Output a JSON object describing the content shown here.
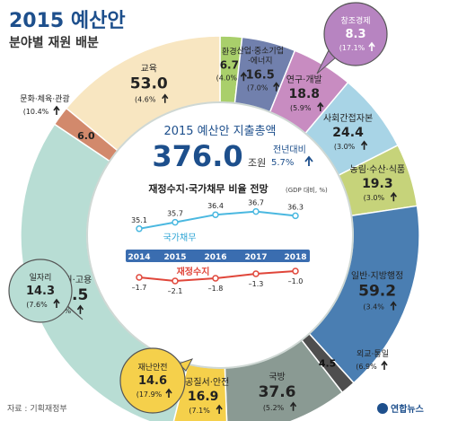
{
  "header": {
    "title": "2015 예산안",
    "subtitle": "분야별 재원 배분"
  },
  "source": "자료 : 기획재정부",
  "logo": "연합뉴스",
  "center": {
    "title": "2015 예산안 지출총액",
    "total": "376.0",
    "unit": "조원",
    "yoy_label": "전년대비",
    "yoy_value": "5.7%"
  },
  "chart_data": [
    {
      "type": "pie",
      "title": "2015 예산안 분야별 재원 배분",
      "unit": "조원",
      "slices": [
        {
          "id": "env",
          "label": "환경",
          "value": 6.7,
          "change": "(4.0%",
          "color": "#a9cf6b"
        },
        {
          "id": "industry",
          "label": "산업·중소기업·에너지",
          "value": 16.5,
          "change": "(7.0%",
          "color": "#7180ad"
        },
        {
          "id": "rnd",
          "label": "연구·개발",
          "value": 18.8,
          "change": "(5.9%",
          "color": "#c88cc1"
        },
        {
          "id": "soc",
          "label": "사회간접자본",
          "value": 24.4,
          "change": "(3.0%",
          "color": "#a8d4e6"
        },
        {
          "id": "agri",
          "label": "농림·수산·식품",
          "value": 19.3,
          "change": "(3.0%",
          "color": "#c6d37a"
        },
        {
          "id": "general",
          "label": "일반·지방행정",
          "value": 59.2,
          "change": "(3.4%",
          "color": "#4a7eb2"
        },
        {
          "id": "diplo",
          "label": "외교·통일",
          "value": 4.5,
          "change": "(6.9%",
          "color": "#4e4e4e"
        },
        {
          "id": "defense",
          "label": "국방",
          "value": 37.6,
          "change": "(5.2%",
          "color": "#8a9a93"
        },
        {
          "id": "safety",
          "label": "공공질서·안전",
          "value": 16.9,
          "change": "(7.1%",
          "color": "#f5d04b"
        },
        {
          "id": "welfare",
          "label": "보건·복지·고용",
          "value": 115.5,
          "change": "(8.5%",
          "color": "#b8ddd4"
        },
        {
          "id": "culture",
          "label": "문화·체육·관광",
          "value": 6.0,
          "change": "(10.4%",
          "color": "#d2896c"
        },
        {
          "id": "edu",
          "label": "교육",
          "value": 53.0,
          "change": "(4.6%",
          "color": "#f8e6c1"
        }
      ],
      "callouts": [
        {
          "id": "creative",
          "label": "창조경제",
          "value": "8.3",
          "change": "(17.1%",
          "color": "#b784c1"
        },
        {
          "id": "jobs",
          "label": "일자리",
          "value": "14.3",
          "change": "(7.6%",
          "color": "#b8ddd4"
        },
        {
          "id": "disaster",
          "label": "재난안전",
          "value": "14.6",
          "change": "(17.9%",
          "color": "#f5d04b"
        }
      ]
    },
    {
      "type": "line",
      "title": "재정수지·국가채무 비율 전망",
      "note": "(GDP 대비, %)",
      "categories": [
        "2014",
        "2015",
        "2016",
        "2017",
        "2018"
      ],
      "series": [
        {
          "name": "국가채무",
          "values": [
            35.1,
            35.7,
            36.4,
            36.7,
            36.3
          ],
          "labels": [
            "35.1",
            "35.7",
            "36.4",
            "36.7",
            "36.3"
          ],
          "color": "#4ab8e0"
        },
        {
          "name": "재정수지",
          "values": [
            -1.7,
            -2.1,
            -1.8,
            -1.3,
            -1.0
          ],
          "labels": [
            "–1.7",
            "–2.1",
            "–1.8",
            "–1.3",
            "–1.0"
          ],
          "color": "#e0463a"
        }
      ]
    }
  ]
}
